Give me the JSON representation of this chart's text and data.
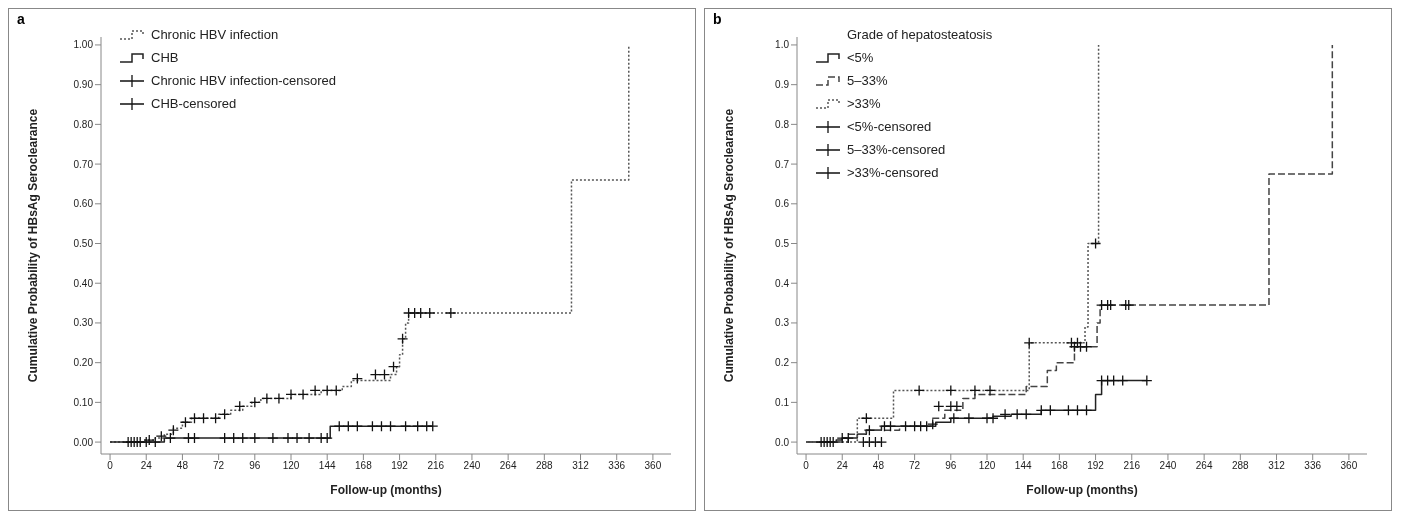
{
  "chart_data": [
    {
      "type": "step",
      "title": "a",
      "xlabel": "Follow-up (months)",
      "ylabel": "Cumulative Probability of HBsAg Seroclearance",
      "legend": "top left",
      "grid": false,
      "xlim": [
        -6,
        372
      ],
      "xticks": [
        0,
        24,
        48,
        72,
        96,
        120,
        144,
        168,
        192,
        216,
        240,
        264,
        288,
        312,
        336,
        360
      ],
      "ylim": [
        -0.03,
        1.02
      ],
      "yticks": [
        {
          "value": 0,
          "label": "0.00"
        },
        {
          "value": 0.1,
          "label": "0.10"
        },
        {
          "value": 0.2,
          "label": "0.20"
        },
        {
          "value": 0.3,
          "label": "0.30"
        },
        {
          "value": 0.4,
          "label": "0.40"
        },
        {
          "value": 0.5,
          "label": "0.50"
        },
        {
          "value": 0.6,
          "label": "0.60"
        },
        {
          "value": 0.7,
          "label": "0.70"
        },
        {
          "value": 0.8,
          "label": "0.80"
        },
        {
          "value": 0.9,
          "label": "0.90"
        },
        {
          "value": 1,
          "label": "1.00"
        }
      ],
      "series": [
        {
          "name": "Chronic HBV infection",
          "color": "#555555",
          "line_style": "dotted",
          "marker": "none",
          "x": [
            0,
            22,
            30,
            36,
            42,
            48,
            54,
            72,
            80,
            88,
            94,
            100,
            120,
            140,
            154,
            160,
            186,
            190,
            192,
            194,
            196,
            198,
            306,
            344
          ],
          "values": [
            0,
            0.005,
            0.01,
            0.02,
            0.035,
            0.05,
            0.06,
            0.07,
            0.08,
            0.09,
            0.1,
            0.11,
            0.12,
            0.13,
            0.14,
            0.155,
            0.17,
            0.19,
            0.22,
            0.26,
            0.3,
            0.325,
            0.66,
            1.0
          ]
        },
        {
          "name": "CHB",
          "color": "#222222",
          "line_style": "solid",
          "marker": "none",
          "x": [
            0,
            36,
            146,
            214
          ],
          "values": [
            0,
            0.01,
            0.04,
            0.04
          ]
        },
        {
          "name": "Chronic HBV infection-censored",
          "type": "scatter",
          "color": "#111111",
          "marker": "cross",
          "x": [
            26,
            34,
            42,
            50,
            56,
            62,
            70,
            76,
            86,
            96,
            104,
            112,
            120,
            128,
            136,
            144,
            150,
            164,
            176,
            182,
            188,
            194,
            198,
            202,
            206,
            212,
            226
          ],
          "values": [
            0.005,
            0.015,
            0.03,
            0.05,
            0.06,
            0.06,
            0.06,
            0.07,
            0.09,
            0.1,
            0.11,
            0.11,
            0.12,
            0.12,
            0.13,
            0.13,
            0.13,
            0.16,
            0.17,
            0.17,
            0.19,
            0.26,
            0.325,
            0.325,
            0.325,
            0.325,
            0.325
          ]
        },
        {
          "name": "CHB-censored",
          "type": "scatter",
          "color": "#111111",
          "marker": "cross",
          "x": [
            12,
            14,
            16,
            18,
            20,
            24,
            30,
            40,
            52,
            56,
            76,
            82,
            88,
            96,
            108,
            118,
            124,
            132,
            140,
            144,
            152,
            158,
            164,
            174,
            180,
            186,
            196,
            204,
            210,
            214
          ],
          "values": [
            0,
            0,
            0,
            0,
            0,
            0,
            0,
            0.01,
            0.01,
            0.01,
            0.01,
            0.01,
            0.01,
            0.01,
            0.01,
            0.01,
            0.01,
            0.01,
            0.01,
            0.01,
            0.04,
            0.04,
            0.04,
            0.04,
            0.04,
            0.04,
            0.04,
            0.04,
            0.04,
            0.04
          ]
        }
      ]
    },
    {
      "type": "step",
      "title": "b",
      "xlabel": "Follow-up (months)",
      "ylabel": "Cumulative Probability of HBsAg Seroclearance",
      "legend_title": "Grade of hepatosteatosis",
      "legend": "top left",
      "grid": false,
      "xlim": [
        -6,
        372
      ],
      "xticks": [
        0,
        24,
        48,
        72,
        96,
        120,
        144,
        168,
        192,
        216,
        240,
        264,
        288,
        312,
        336,
        360
      ],
      "ylim": [
        -0.03,
        1.02
      ],
      "yticks": [
        {
          "value": 0,
          "label": "0.0"
        },
        {
          "value": 0.1,
          "label": "0.1"
        },
        {
          "value": 0.2,
          "label": "0.2"
        },
        {
          "value": 0.3,
          "label": "0.3"
        },
        {
          "value": 0.4,
          "label": "0.4"
        },
        {
          "value": 0.5,
          "label": "0.5"
        },
        {
          "value": 0.6,
          "label": "0.6"
        },
        {
          "value": 0.7,
          "label": "0.7"
        },
        {
          "value": 0.8,
          "label": "0.8"
        },
        {
          "value": 0.9,
          "label": "0.9"
        },
        {
          "value": 1,
          "label": "1.0"
        }
      ],
      "series": [
        {
          "name": "<5%",
          "color": "#222222",
          "line_style": "solid",
          "marker": "none",
          "x": [
            0,
            20,
            24,
            34,
            40,
            50,
            86,
            96,
            124,
            136,
            156,
            190,
            192,
            196,
            226
          ],
          "values": [
            0,
            0.005,
            0.01,
            0.02,
            0.03,
            0.04,
            0.05,
            0.06,
            0.065,
            0.07,
            0.08,
            0.08,
            0.12,
            0.155,
            0.155
          ]
        },
        {
          "name": "5–33%",
          "color": "#444444",
          "line_style": "dashed",
          "marker": "none",
          "x": [
            0,
            28,
            40,
            62,
            84,
            92,
            104,
            112,
            146,
            160,
            166,
            178,
            193,
            195,
            307,
            349
          ],
          "values": [
            0,
            0.02,
            0.03,
            0.04,
            0.06,
            0.08,
            0.11,
            0.12,
            0.14,
            0.18,
            0.2,
            0.24,
            0.3,
            0.345,
            0.675,
            1.0
          ]
        },
        {
          "name": ">33%",
          "color": "#555555",
          "line_style": "dotted",
          "marker": "none",
          "x": [
            0,
            34,
            58,
            148,
            185,
            187,
            194
          ],
          "values": [
            0,
            0.06,
            0.13,
            0.25,
            0.29,
            0.5,
            1.0
          ]
        },
        {
          "name": "<5%-censored",
          "type": "scatter",
          "color": "#111111",
          "marker": "cross",
          "x": [
            10,
            12,
            14,
            16,
            18,
            24,
            28,
            42,
            52,
            56,
            66,
            72,
            76,
            80,
            84,
            98,
            108,
            120,
            124,
            132,
            140,
            146,
            156,
            162,
            174,
            180,
            186,
            196,
            200,
            204,
            210,
            226
          ],
          "values": [
            0,
            0,
            0,
            0,
            0,
            0.01,
            0.01,
            0.03,
            0.04,
            0.04,
            0.04,
            0.04,
            0.04,
            0.04,
            0.045,
            0.06,
            0.06,
            0.06,
            0.06,
            0.07,
            0.07,
            0.07,
            0.08,
            0.08,
            0.08,
            0.08,
            0.08,
            0.155,
            0.155,
            0.155,
            0.155,
            0.155
          ]
        },
        {
          "name": "5–33%-censored",
          "type": "scatter",
          "color": "#111111",
          "marker": "cross",
          "x": [
            38,
            42,
            46,
            50,
            88,
            96,
            100,
            178,
            182,
            186,
            196,
            200,
            202,
            212,
            214
          ],
          "values": [
            0,
            0,
            0,
            0,
            0.09,
            0.09,
            0.09,
            0.24,
            0.24,
            0.24,
            0.345,
            0.345,
            0.345,
            0.345,
            0.345
          ]
        },
        {
          "name": ">33%-censored",
          "type": "scatter",
          "color": "#111111",
          "marker": "cross",
          "x": [
            40,
            75,
            96,
            112,
            122,
            148,
            176,
            180,
            192
          ],
          "values": [
            0.06,
            0.13,
            0.13,
            0.13,
            0.13,
            0.25,
            0.25,
            0.25,
            0.5
          ]
        }
      ]
    }
  ]
}
